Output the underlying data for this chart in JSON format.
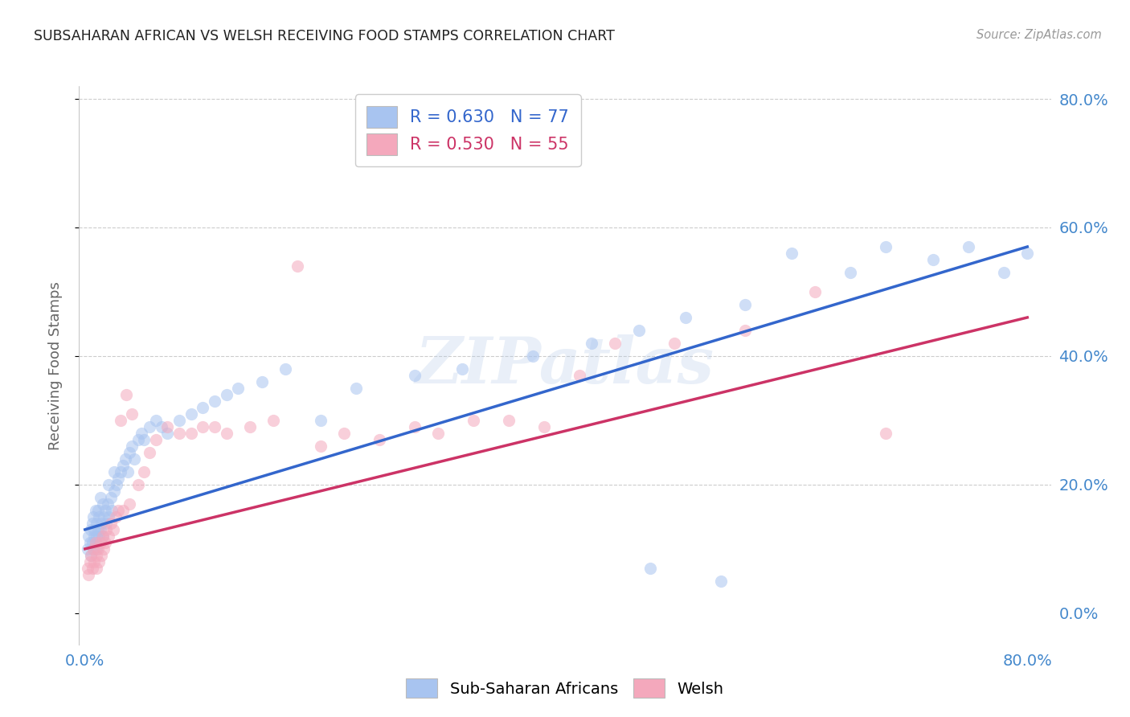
{
  "title": "SUBSAHARAN AFRICAN VS WELSH RECEIVING FOOD STAMPS CORRELATION CHART",
  "source": "Source: ZipAtlas.com",
  "ylabel": "Receiving Food Stamps",
  "watermark": "ZIPatlas",
  "blue_R": 0.63,
  "blue_N": 77,
  "pink_R": 0.53,
  "pink_N": 55,
  "blue_color": "#a8c4f0",
  "pink_color": "#f4a8bc",
  "blue_line_color": "#3366cc",
  "pink_line_color": "#cc3366",
  "background_color": "#ffffff",
  "grid_color": "#cccccc",
  "axis_label_color": "#4488cc",
  "title_color": "#222222",
  "blue_line_x0": 0.0,
  "blue_line_y0": 0.13,
  "blue_line_x1": 0.8,
  "blue_line_y1": 0.57,
  "pink_line_x0": 0.0,
  "pink_line_y0": 0.1,
  "pink_line_x1": 0.8,
  "pink_line_y1": 0.46,
  "blue_points_x": [
    0.002,
    0.003,
    0.004,
    0.005,
    0.005,
    0.006,
    0.006,
    0.007,
    0.007,
    0.008,
    0.008,
    0.009,
    0.009,
    0.01,
    0.01,
    0.01,
    0.011,
    0.011,
    0.012,
    0.012,
    0.013,
    0.013,
    0.014,
    0.015,
    0.015,
    0.016,
    0.017,
    0.018,
    0.019,
    0.02,
    0.02,
    0.022,
    0.023,
    0.025,
    0.025,
    0.027,
    0.028,
    0.03,
    0.032,
    0.034,
    0.036,
    0.038,
    0.04,
    0.042,
    0.045,
    0.048,
    0.05,
    0.055,
    0.06,
    0.065,
    0.07,
    0.08,
    0.09,
    0.1,
    0.11,
    0.12,
    0.13,
    0.15,
    0.17,
    0.2,
    0.23,
    0.28,
    0.32,
    0.38,
    0.43,
    0.47,
    0.51,
    0.56,
    0.6,
    0.65,
    0.68,
    0.72,
    0.75,
    0.78,
    0.8,
    0.48,
    0.54
  ],
  "blue_points_y": [
    0.1,
    0.12,
    0.11,
    0.13,
    0.09,
    0.14,
    0.11,
    0.1,
    0.15,
    0.12,
    0.13,
    0.11,
    0.16,
    0.12,
    0.14,
    0.1,
    0.13,
    0.16,
    0.12,
    0.15,
    0.13,
    0.18,
    0.14,
    0.12,
    0.17,
    0.15,
    0.16,
    0.14,
    0.17,
    0.15,
    0.2,
    0.18,
    0.16,
    0.19,
    0.22,
    0.2,
    0.21,
    0.22,
    0.23,
    0.24,
    0.22,
    0.25,
    0.26,
    0.24,
    0.27,
    0.28,
    0.27,
    0.29,
    0.3,
    0.29,
    0.28,
    0.3,
    0.31,
    0.32,
    0.33,
    0.34,
    0.35,
    0.36,
    0.38,
    0.3,
    0.35,
    0.37,
    0.38,
    0.4,
    0.42,
    0.44,
    0.46,
    0.48,
    0.56,
    0.53,
    0.57,
    0.55,
    0.57,
    0.53,
    0.56,
    0.07,
    0.05
  ],
  "pink_points_x": [
    0.002,
    0.003,
    0.004,
    0.005,
    0.006,
    0.007,
    0.008,
    0.009,
    0.01,
    0.01,
    0.011,
    0.012,
    0.013,
    0.014,
    0.015,
    0.016,
    0.017,
    0.018,
    0.02,
    0.022,
    0.024,
    0.026,
    0.028,
    0.03,
    0.032,
    0.035,
    0.038,
    0.04,
    0.045,
    0.05,
    0.055,
    0.06,
    0.07,
    0.08,
    0.09,
    0.1,
    0.11,
    0.12,
    0.14,
    0.16,
    0.18,
    0.2,
    0.22,
    0.25,
    0.28,
    0.3,
    0.33,
    0.36,
    0.39,
    0.42,
    0.45,
    0.5,
    0.56,
    0.62,
    0.68
  ],
  "pink_points_y": [
    0.07,
    0.06,
    0.08,
    0.09,
    0.07,
    0.1,
    0.08,
    0.11,
    0.09,
    0.07,
    0.1,
    0.08,
    0.11,
    0.09,
    0.12,
    0.1,
    0.11,
    0.13,
    0.12,
    0.14,
    0.13,
    0.15,
    0.16,
    0.3,
    0.16,
    0.34,
    0.17,
    0.31,
    0.2,
    0.22,
    0.25,
    0.27,
    0.29,
    0.28,
    0.28,
    0.29,
    0.29,
    0.28,
    0.29,
    0.3,
    0.54,
    0.26,
    0.28,
    0.27,
    0.29,
    0.28,
    0.3,
    0.3,
    0.29,
    0.37,
    0.42,
    0.42,
    0.44,
    0.5,
    0.28
  ],
  "xlim": [
    -0.005,
    0.82
  ],
  "ylim": [
    -0.05,
    0.82
  ],
  "xticks": [
    0.0,
    0.1,
    0.2,
    0.3,
    0.4,
    0.5,
    0.6,
    0.7,
    0.8
  ],
  "yticks": [
    0.0,
    0.2,
    0.4,
    0.6,
    0.8
  ],
  "right_ytick_labels": [
    "0.0%",
    "20.0%",
    "40.0%",
    "60.0%",
    "80.0%"
  ],
  "marker_size": 120,
  "marker_alpha": 0.55
}
